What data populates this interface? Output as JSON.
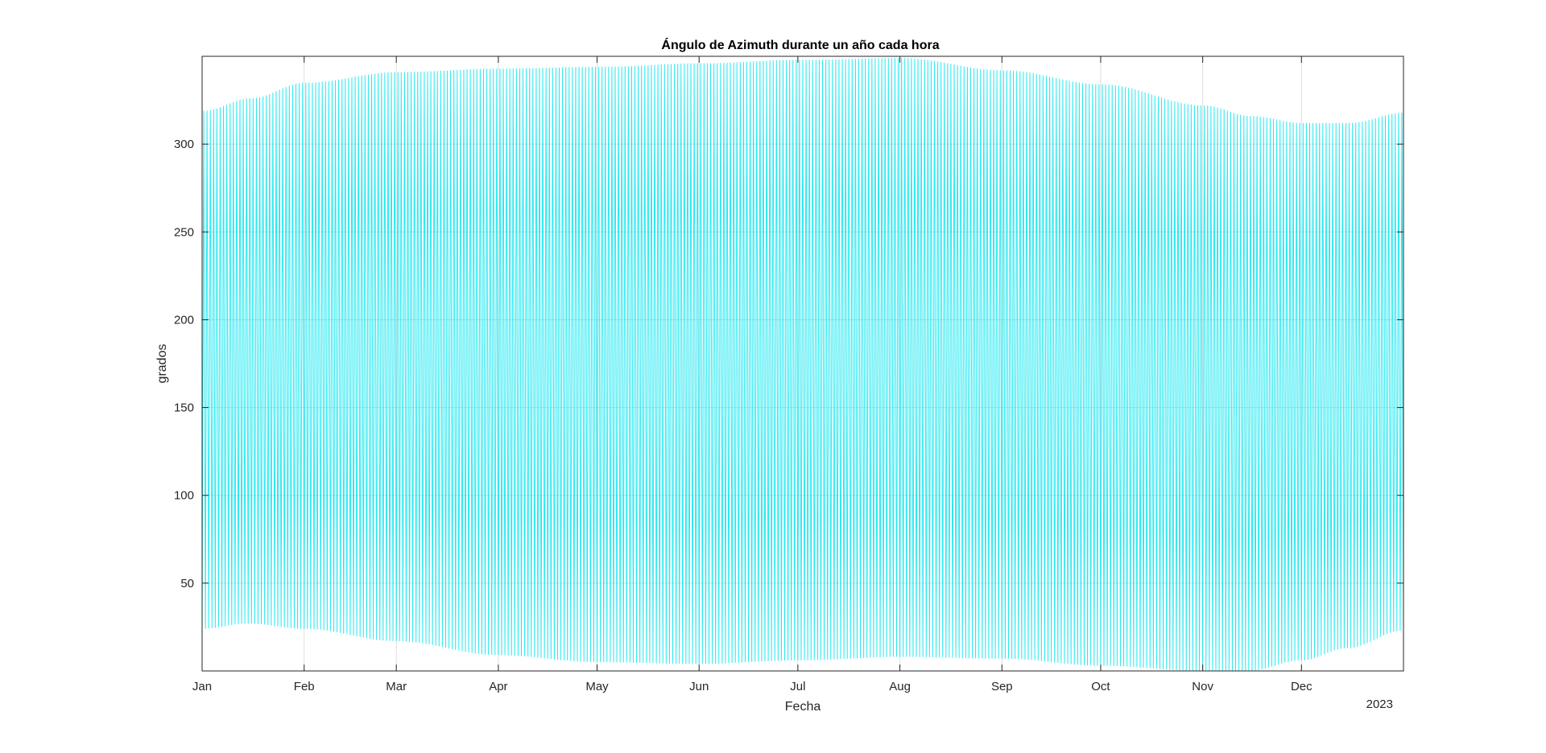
{
  "chart_data": {
    "type": "line",
    "title": "Ángulo de Azimuth durante un año cada hora",
    "xlabel": "Fecha",
    "ylabel": "grados",
    "year_label": "2023",
    "x_ticks": [
      "Jan",
      "Feb",
      "Mar",
      "Apr",
      "May",
      "Jun",
      "Jul",
      "Aug",
      "Sep",
      "Oct",
      "Nov",
      "Dec"
    ],
    "x_tick_dates": [
      "2023-01-01",
      "2023-02-01",
      "2023-03-01",
      "2023-04-01",
      "2023-05-01",
      "2023-06-01",
      "2023-07-01",
      "2023-08-01",
      "2023-09-01",
      "2023-10-01",
      "2023-11-01",
      "2023-12-01"
    ],
    "xlim": [
      "2023-01-01",
      "2024-01-01"
    ],
    "y_ticks": [
      50,
      100,
      150,
      200,
      250,
      300
    ],
    "ylim": [
      0,
      350
    ],
    "grid": true,
    "line_color": "#00e5ee",
    "series": [
      {
        "sampling": "hourly",
        "envelope_dates": [
          "2023-01-01",
          "2023-01-15",
          "2023-02-01",
          "2023-03-01",
          "2023-04-01",
          "2023-05-01",
          "2023-06-01",
          "2023-07-01",
          "2023-08-01",
          "2023-09-01",
          "2023-10-01",
          "2023-11-01",
          "2023-11-15",
          "2023-12-01",
          "2023-12-15",
          "2024-01-01"
        ],
        "daily_max": [
          319,
          326,
          335,
          341,
          343,
          344,
          346,
          348,
          349,
          342,
          334,
          322,
          316,
          312,
          312,
          318
        ],
        "daily_min": [
          24,
          27,
          24,
          17,
          9,
          5,
          4,
          6,
          8,
          7,
          3,
          0,
          0,
          6,
          13,
          23
        ]
      }
    ]
  }
}
